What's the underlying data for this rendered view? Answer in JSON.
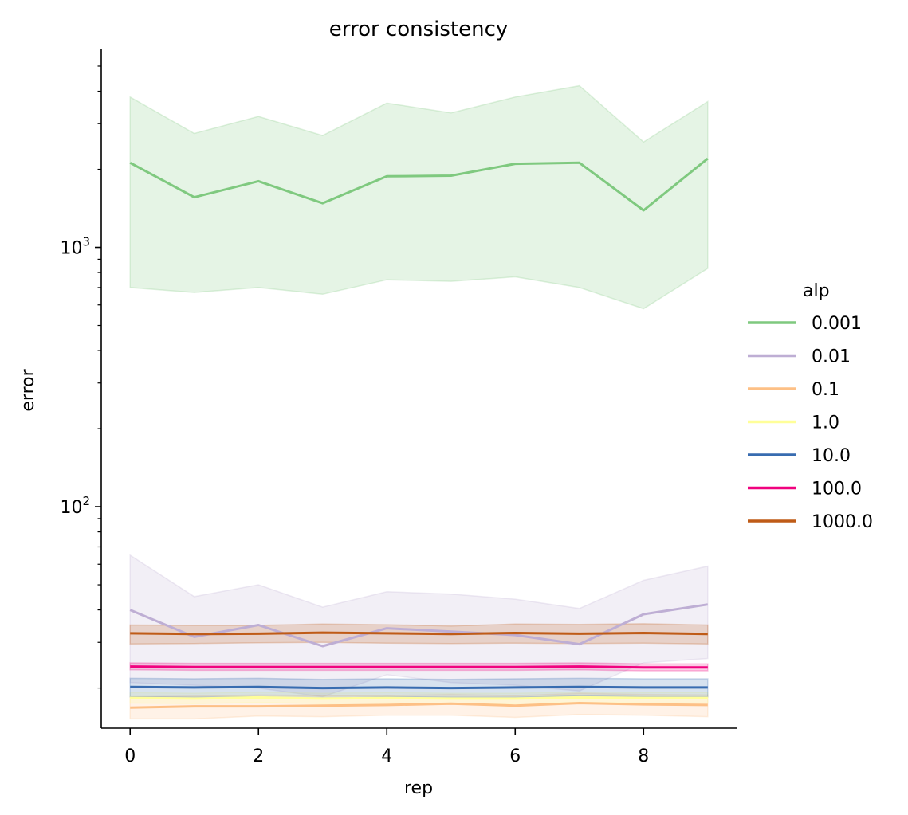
{
  "chart_data": {
    "type": "line",
    "title": "error consistency",
    "xlabel": "rep",
    "ylabel": "error",
    "x": [
      0,
      1,
      2,
      3,
      4,
      5,
      6,
      7,
      8,
      9
    ],
    "xticks": [
      "0",
      "2",
      "4",
      "6",
      "8"
    ],
    "xtick_values": [
      0,
      2,
      4,
      6,
      8
    ],
    "xlim": [
      -0.45,
      9.45
    ],
    "yscale": "log",
    "ylim": [
      14,
      5800
    ],
    "yticks_major": [
      {
        "value": 100,
        "base": "10",
        "exp": "2"
      },
      {
        "value": 1000,
        "base": "10",
        "exp": "3"
      }
    ],
    "grid": false,
    "legend": {
      "title": "alp",
      "placement": "right"
    },
    "series": [
      {
        "name": "0.001",
        "color": "#7fc97f",
        "values": [
          2120,
          1560,
          1800,
          1480,
          1880,
          1890,
          2100,
          2120,
          1390,
          2200
        ],
        "lower": [
          700,
          670,
          700,
          660,
          750,
          740,
          770,
          700,
          580,
          830
        ],
        "upper": [
          3800,
          2750,
          3200,
          2700,
          3600,
          3300,
          3800,
          4200,
          2550,
          3650
        ]
      },
      {
        "name": "0.01",
        "color": "#beaed4",
        "values": [
          40,
          31.5,
          35,
          29,
          34,
          33,
          32,
          29.5,
          38.5,
          42
        ],
        "lower": [
          21,
          20.5,
          20,
          18.5,
          22.5,
          21,
          20.5,
          19.5,
          25,
          26
        ],
        "upper": [
          65,
          45,
          50,
          41,
          47,
          46,
          44,
          40.5,
          52,
          59
        ]
      },
      {
        "name": "0.1",
        "color": "#fdc086",
        "values": [
          16.8,
          17,
          17,
          17.1,
          17.2,
          17.4,
          17.1,
          17.5,
          17.3,
          17.2
        ],
        "lower": [
          15.2,
          15.2,
          15.6,
          15.5,
          15.7,
          15.7,
          15.4,
          15.8,
          15.7,
          15.5
        ],
        "upper": [
          18.5,
          18.6,
          18.8,
          18.7,
          18.7,
          18.9,
          18.7,
          19.1,
          18.9,
          18.8
        ]
      },
      {
        "name": "1.0",
        "color": "#ffff99",
        "values": [
          18.3,
          18.2,
          18.4,
          18.2,
          18.3,
          18.2,
          18.2,
          18.4,
          18.3,
          18.3
        ],
        "lower": [
          17.5,
          17.4,
          17.6,
          17.4,
          17.5,
          17.4,
          17.4,
          17.6,
          17.5,
          17.5
        ],
        "upper": [
          19.2,
          19.1,
          19.3,
          19.1,
          19.2,
          19.1,
          19.1,
          19.3,
          19.2,
          19.2
        ]
      },
      {
        "name": "10.0",
        "color": "#386cb0",
        "values": [
          20.2,
          20.1,
          20.2,
          20,
          20.1,
          20,
          20.1,
          20.2,
          20.1,
          20.1
        ],
        "lower": [
          18.5,
          18.4,
          18.5,
          18.2,
          18.5,
          18.4,
          18.4,
          18.6,
          18.5,
          18.5
        ],
        "upper": [
          21.8,
          21.7,
          21.8,
          21.6,
          21.7,
          21.6,
          21.7,
          21.8,
          21.7,
          21.7
        ]
      },
      {
        "name": "100.0",
        "color": "#f0027f",
        "values": [
          24.2,
          24.1,
          24.1,
          24.1,
          24.1,
          24.1,
          24.1,
          24.2,
          24,
          24
        ],
        "lower": [
          23.5,
          23.4,
          23.4,
          23.4,
          23.4,
          23.4,
          23.4,
          23.5,
          23.3,
          23.3
        ],
        "upper": [
          25,
          24.9,
          24.9,
          24.9,
          24.9,
          24.9,
          24.9,
          25,
          24.8,
          24.8
        ]
      },
      {
        "name": "1000.0",
        "color": "#bf5b17",
        "values": [
          32.5,
          32.3,
          32.4,
          32.7,
          32.5,
          32.3,
          32.6,
          32.4,
          32.6,
          32.3
        ],
        "lower": [
          29.6,
          29.7,
          29.9,
          30,
          29.8,
          29.7,
          29.8,
          29.7,
          29.8,
          29.6
        ],
        "upper": [
          35,
          34.9,
          34.9,
          35.3,
          35.1,
          34.7,
          35.3,
          35.2,
          35.4,
          35
        ]
      }
    ]
  }
}
